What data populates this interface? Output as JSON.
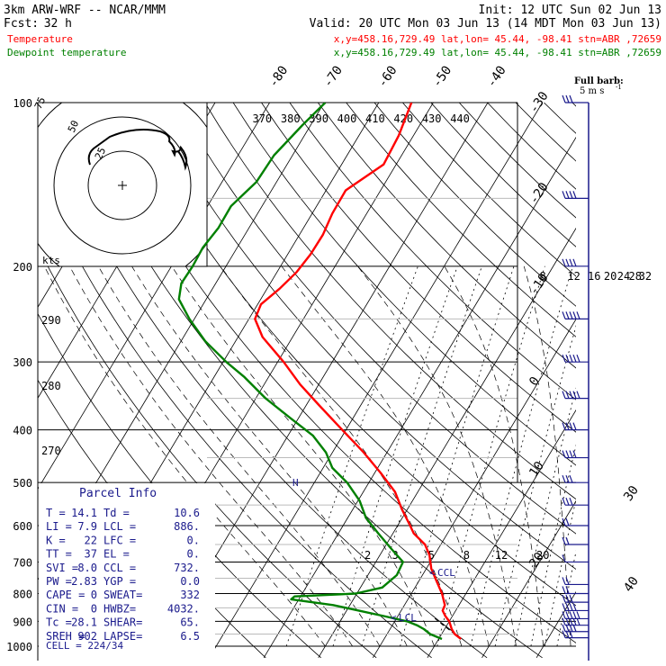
{
  "header": {
    "model": "3km ARW-WRF -- NCAR/MMM",
    "init": "Init: 12 UTC Sun 02 Jun 13",
    "fcst_label": "Fcst:",
    "fcst_value": "32 h",
    "valid": "Valid: 20 UTC Mon 03 Jun 13 (14 MDT Mon 03 Jun 13)",
    "temp_label": "Temperature",
    "temp_loc": "x,y=458.16,729.49   lat,lon= 45.44, -98.41   stn=ABR ,72659",
    "dew_label": "Dewpoint temperature",
    "dew_loc": "x,y=458.16,729.49   lat,lon= 45.44, -98.41   stn=ABR ,72659"
  },
  "colors": {
    "temperature": "#ff0000",
    "dewpoint": "#008000",
    "parcel": "#1a1a8c",
    "grid": "#000000"
  },
  "barb_legend": {
    "line1": "Full barb:",
    "line2": "5 m s",
    "unit_sup": "-1"
  },
  "parcel_info": {
    "title": "Parcel Info",
    "rows": [
      [
        "T  =",
        "14.1",
        "Td =",
        "10.6"
      ],
      [
        "LI =",
        "7.9",
        "LCL =",
        "886."
      ],
      [
        "K  =",
        "22",
        "LFC =",
        "0."
      ],
      [
        "TT =",
        "37",
        "EL  =",
        "0."
      ],
      [
        "SVI =",
        "8.0",
        "CCL =",
        "732."
      ],
      [
        "PW =",
        "2.83",
        "YGP =",
        "0.0"
      ],
      [
        "CAPE =",
        "0",
        "SWEAT=",
        "332"
      ],
      [
        "CIN =",
        "0",
        "HWBZ=",
        "4032."
      ],
      [
        "Tc =",
        "28.1",
        "SHEAR=",
        "65."
      ],
      [
        "SREH =",
        "902",
        "LAPSE=",
        "6.5"
      ]
    ],
    "cell": "CELL = 224/34"
  },
  "annotations": {
    "ccl": "CCL",
    "lcl": "LCL",
    "hodo_kts": "kts",
    "hodo_ring_inner": "25",
    "hodo_ring_outer": "50",
    "hodo_ring_75": "75"
  },
  "chart_data": {
    "type": "line",
    "title": "",
    "xlabel": "",
    "ylabel": "",
    "y_scale": "log (pressure)",
    "ylim": [
      1000,
      100
    ],
    "pressure_levels": [
      100,
      200,
      300,
      400,
      500,
      600,
      700,
      800,
      900,
      1000
    ],
    "isotherm_labels": [
      -80,
      -70,
      -60,
      -50,
      -40,
      -30,
      -20,
      -10,
      0,
      10,
      20,
      30,
      40
    ],
    "theta_labels_top": [
      370,
      380,
      390,
      400,
      410,
      420,
      430,
      440
    ],
    "theta_labels_left": [
      290,
      280,
      270
    ],
    "mixing_ratio_labels_low": [
      2,
      3,
      5,
      8,
      12,
      20
    ],
    "mixing_ratio_labels_high": [
      8,
      12,
      16,
      20,
      24,
      28,
      32
    ],
    "series": [
      {
        "name": "Temperature",
        "pressure": [
          970,
          950,
          930,
          900,
          880,
          860,
          840,
          800,
          760,
          720,
          680,
          650,
          620,
          600,
          560,
          520,
          480,
          440,
          400,
          360,
          330,
          300,
          270,
          250,
          235,
          220,
          205,
          190,
          175,
          160,
          145,
          130,
          115,
          100
        ],
        "temperature_c": [
          14.1,
          12.4,
          11.3,
          10.0,
          8.7,
          7.6,
          7.4,
          5.6,
          3.3,
          0.9,
          -0.9,
          -2.9,
          -6.2,
          -7.7,
          -11.0,
          -14.2,
          -18.9,
          -24.3,
          -30.7,
          -37.7,
          -43.4,
          -48.9,
          -55.5,
          -58.9,
          -59.4,
          -57.7,
          -56.4,
          -55.8,
          -55.7,
          -56.3,
          -56.4,
          -52.3,
          -52.7,
          -54.0
        ]
      },
      {
        "name": "Dewpoint temperature",
        "pressure": [
          970,
          950,
          930,
          915,
          900,
          880,
          860,
          840,
          820,
          810,
          800,
          780,
          740,
          700,
          660,
          620,
          580,
          540,
          500,
          470,
          440,
          410,
          380,
          350,
          320,
          300,
          275,
          250,
          230,
          215,
          200,
          185,
          170,
          155,
          140,
          125,
          110,
          100
        ],
        "temperature_c": [
          10.6,
          7.9,
          6.2,
          4.5,
          2.3,
          -2.6,
          -7.8,
          -13.1,
          -21.4,
          -21.1,
          -10.2,
          -6.0,
          -4.7,
          -5.0,
          -8.8,
          -12.7,
          -16.7,
          -19.7,
          -24.0,
          -28.3,
          -31.2,
          -35.4,
          -41.6,
          -48.2,
          -54.4,
          -59.4,
          -65.5,
          -70.9,
          -75.0,
          -76.3,
          -76.1,
          -76.3,
          -75.6,
          -75.7,
          -73.7,
          -73.4,
          -71.5,
          -69.8
        ]
      }
    ],
    "wind_profile": {
      "pressure": [
        965,
        940,
        915,
        890,
        860,
        830,
        800,
        770,
        700,
        650,
        600,
        550,
        500,
        450,
        400,
        350,
        300,
        250,
        200,
        150,
        100
      ],
      "speed_ms": [
        15,
        20,
        25,
        25,
        20,
        15,
        10,
        10,
        5,
        10,
        10,
        15,
        15,
        20,
        20,
        25,
        25,
        25,
        20,
        20,
        15
      ]
    },
    "hodograph_rings_kts": [
      25,
      50,
      75
    ]
  }
}
